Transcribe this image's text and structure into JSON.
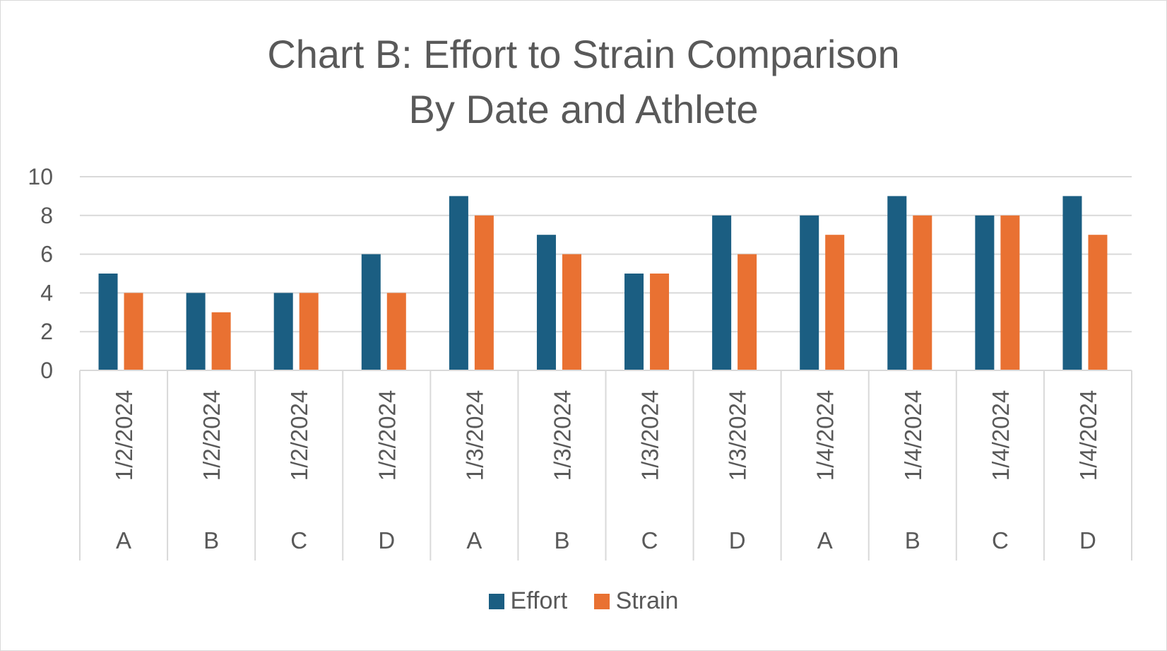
{
  "chart_data": {
    "type": "bar",
    "title": "Chart B: Effort to Strain Comparison",
    "subtitle": "By Date and Athlete",
    "categories": [
      {
        "date": "1/2/2024",
        "athlete": "A"
      },
      {
        "date": "1/2/2024",
        "athlete": "B"
      },
      {
        "date": "1/2/2024",
        "athlete": "C"
      },
      {
        "date": "1/2/2024",
        "athlete": "D"
      },
      {
        "date": "1/3/2024",
        "athlete": "A"
      },
      {
        "date": "1/3/2024",
        "athlete": "B"
      },
      {
        "date": "1/3/2024",
        "athlete": "C"
      },
      {
        "date": "1/3/2024",
        "athlete": "D"
      },
      {
        "date": "1/4/2024",
        "athlete": "A"
      },
      {
        "date": "1/4/2024",
        "athlete": "B"
      },
      {
        "date": "1/4/2024",
        "athlete": "C"
      },
      {
        "date": "1/4/2024",
        "athlete": "D"
      }
    ],
    "series": [
      {
        "name": "Effort",
        "color": "#1b5e82",
        "values": [
          5,
          4,
          4,
          6,
          9,
          7,
          5,
          8,
          8,
          9,
          8,
          9
        ]
      },
      {
        "name": "Strain",
        "color": "#e97132",
        "values": [
          4,
          3,
          4,
          4,
          8,
          6,
          5,
          6,
          7,
          8,
          8,
          7
        ]
      }
    ],
    "ylim": [
      0,
      10
    ],
    "yticks": [
      0,
      2,
      4,
      6,
      8,
      10
    ],
    "grid": true,
    "legend_position": "bottom"
  }
}
